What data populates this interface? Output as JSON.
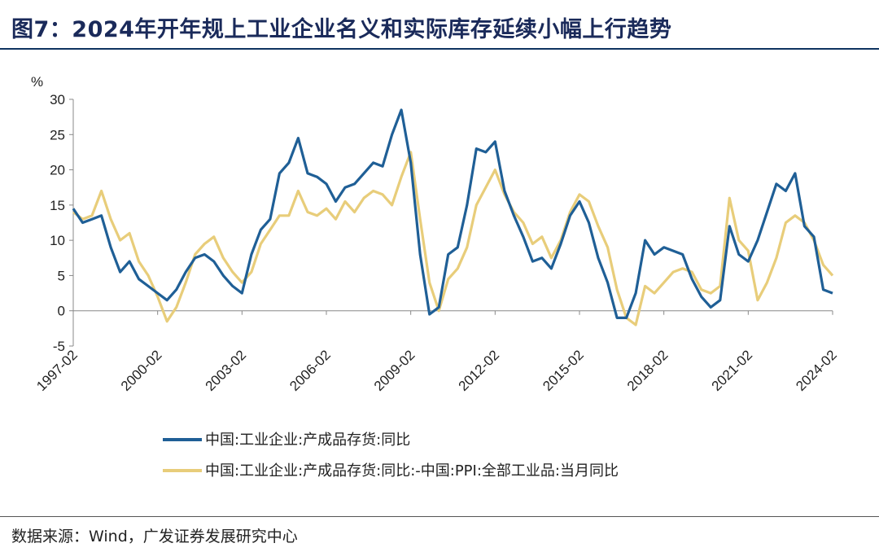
{
  "title": "图7：2024年开年规上工业企业名义和实际库存延续小幅上行趋势",
  "source": "数据来源：Wind，广发证券发展研究中心",
  "colors": {
    "series1": "#1f5f96",
    "series2": "#e8cd7a",
    "title": "#1a2a5a"
  },
  "chart_data": {
    "type": "line",
    "unit": "%",
    "ylim": [
      -5,
      30
    ],
    "yticks": [
      -5,
      0,
      5,
      10,
      15,
      20,
      25,
      30
    ],
    "xticks": [
      "1997-02",
      "2000-02",
      "2003-02",
      "2006-02",
      "2009-02",
      "2012-02",
      "2015-02",
      "2018-02",
      "2021-02",
      "2024-02"
    ],
    "x_range": [
      "1997-02",
      "2024-02"
    ],
    "grid": false,
    "legend": "bottom",
    "series": [
      {
        "name": "中国:工业企业:产成品存货:同比",
        "color": "#1f5f96",
        "points": [
          [
            "1997-02",
            14.5
          ],
          [
            "1997-06",
            12.5
          ],
          [
            "1997-10",
            13.0
          ],
          [
            "1998-02",
            13.5
          ],
          [
            "1998-06",
            9.0
          ],
          [
            "1998-10",
            5.5
          ],
          [
            "1999-02",
            7.0
          ],
          [
            "1999-06",
            4.5
          ],
          [
            "1999-10",
            3.5
          ],
          [
            "2000-02",
            2.5
          ],
          [
            "2000-06",
            1.5
          ],
          [
            "2000-10",
            3.0
          ],
          [
            "2001-02",
            5.5
          ],
          [
            "2001-06",
            7.5
          ],
          [
            "2001-10",
            8.0
          ],
          [
            "2002-02",
            7.0
          ],
          [
            "2002-06",
            5.0
          ],
          [
            "2002-10",
            3.5
          ],
          [
            "2003-02",
            2.5
          ],
          [
            "2003-06",
            8.0
          ],
          [
            "2003-10",
            11.5
          ],
          [
            "2004-02",
            13.0
          ],
          [
            "2004-06",
            19.5
          ],
          [
            "2004-10",
            21.0
          ],
          [
            "2005-02",
            24.5
          ],
          [
            "2005-06",
            19.5
          ],
          [
            "2005-10",
            19.0
          ],
          [
            "2006-02",
            18.0
          ],
          [
            "2006-06",
            15.5
          ],
          [
            "2006-10",
            17.5
          ],
          [
            "2007-02",
            18.0
          ],
          [
            "2007-06",
            19.5
          ],
          [
            "2007-10",
            21.0
          ],
          [
            "2008-02",
            20.5
          ],
          [
            "2008-06",
            25.0
          ],
          [
            "2008-10",
            28.5
          ],
          [
            "2009-02",
            21.0
          ],
          [
            "2009-06",
            8.0
          ],
          [
            "2009-10",
            -0.5
          ],
          [
            "2010-02",
            0.5
          ],
          [
            "2010-06",
            8.0
          ],
          [
            "2010-10",
            9.0
          ],
          [
            "2011-02",
            15.0
          ],
          [
            "2011-06",
            23.0
          ],
          [
            "2011-10",
            22.5
          ],
          [
            "2012-02",
            24.0
          ],
          [
            "2012-06",
            17.0
          ],
          [
            "2012-10",
            13.5
          ],
          [
            "2013-02",
            10.5
          ],
          [
            "2013-06",
            7.0
          ],
          [
            "2013-10",
            7.5
          ],
          [
            "2014-02",
            6.0
          ],
          [
            "2014-06",
            9.5
          ],
          [
            "2014-10",
            13.5
          ],
          [
            "2015-02",
            15.5
          ],
          [
            "2015-06",
            12.5
          ],
          [
            "2015-10",
            7.5
          ],
          [
            "2016-02",
            4.0
          ],
          [
            "2016-06",
            -1.0
          ],
          [
            "2016-10",
            -1.0
          ],
          [
            "2017-02",
            2.5
          ],
          [
            "2017-06",
            10.0
          ],
          [
            "2017-10",
            8.0
          ],
          [
            "2018-02",
            9.0
          ],
          [
            "2018-06",
            8.5
          ],
          [
            "2018-10",
            8.0
          ],
          [
            "2019-02",
            4.5
          ],
          [
            "2019-06",
            2.0
          ],
          [
            "2019-10",
            0.5
          ],
          [
            "2020-02",
            1.5
          ],
          [
            "2020-06",
            12.0
          ],
          [
            "2020-10",
            8.0
          ],
          [
            "2021-02",
            7.0
          ],
          [
            "2021-06",
            10.0
          ],
          [
            "2021-10",
            14.0
          ],
          [
            "2022-02",
            18.0
          ],
          [
            "2022-06",
            17.0
          ],
          [
            "2022-10",
            19.5
          ],
          [
            "2023-02",
            12.0
          ],
          [
            "2023-06",
            10.5
          ],
          [
            "2023-10",
            3.0
          ],
          [
            "2024-02",
            2.5
          ]
        ]
      },
      {
        "name": "中国:工业企业:产成品存货:同比:-中国:PPI:全部工业品:当月同比",
        "color": "#e8cd7a",
        "points": [
          [
            "1997-02",
            14.0
          ],
          [
            "1997-06",
            13.0
          ],
          [
            "1997-10",
            13.5
          ],
          [
            "1998-02",
            17.0
          ],
          [
            "1998-06",
            13.0
          ],
          [
            "1998-10",
            10.0
          ],
          [
            "1999-02",
            11.0
          ],
          [
            "1999-06",
            7.0
          ],
          [
            "1999-10",
            5.0
          ],
          [
            "2000-02",
            2.0
          ],
          [
            "2000-06",
            -1.5
          ],
          [
            "2000-10",
            0.5
          ],
          [
            "2001-02",
            4.0
          ],
          [
            "2001-06",
            8.0
          ],
          [
            "2001-10",
            9.5
          ],
          [
            "2002-02",
            10.5
          ],
          [
            "2002-06",
            7.5
          ],
          [
            "2002-10",
            5.5
          ],
          [
            "2003-02",
            4.0
          ],
          [
            "2003-06",
            5.5
          ],
          [
            "2003-10",
            9.5
          ],
          [
            "2004-02",
            11.5
          ],
          [
            "2004-06",
            13.5
          ],
          [
            "2004-10",
            13.5
          ],
          [
            "2005-02",
            17.0
          ],
          [
            "2005-06",
            14.0
          ],
          [
            "2005-10",
            13.5
          ],
          [
            "2006-02",
            14.5
          ],
          [
            "2006-06",
            13.0
          ],
          [
            "2006-10",
            15.5
          ],
          [
            "2007-02",
            14.0
          ],
          [
            "2007-06",
            16.0
          ],
          [
            "2007-10",
            17.0
          ],
          [
            "2008-02",
            16.5
          ],
          [
            "2008-06",
            15.0
          ],
          [
            "2008-10",
            19.0
          ],
          [
            "2009-02",
            22.5
          ],
          [
            "2009-06",
            13.0
          ],
          [
            "2009-10",
            4.0
          ],
          [
            "2010-02",
            0.0
          ],
          [
            "2010-06",
            4.5
          ],
          [
            "2010-10",
            6.0
          ],
          [
            "2011-02",
            9.0
          ],
          [
            "2011-06",
            15.0
          ],
          [
            "2011-10",
            17.5
          ],
          [
            "2012-02",
            20.0
          ],
          [
            "2012-06",
            16.5
          ],
          [
            "2012-10",
            14.0
          ],
          [
            "2013-02",
            12.5
          ],
          [
            "2013-06",
            9.5
          ],
          [
            "2013-10",
            10.5
          ],
          [
            "2014-02",
            7.5
          ],
          [
            "2014-06",
            10.0
          ],
          [
            "2014-10",
            14.0
          ],
          [
            "2015-02",
            16.5
          ],
          [
            "2015-06",
            15.5
          ],
          [
            "2015-10",
            12.0
          ],
          [
            "2016-02",
            9.0
          ],
          [
            "2016-06",
            3.0
          ],
          [
            "2016-10",
            -1.0
          ],
          [
            "2017-02",
            -2.0
          ],
          [
            "2017-06",
            3.5
          ],
          [
            "2017-10",
            2.5
          ],
          [
            "2018-02",
            4.0
          ],
          [
            "2018-06",
            5.5
          ],
          [
            "2018-10",
            6.0
          ],
          [
            "2019-02",
            5.5
          ],
          [
            "2019-06",
            3.0
          ],
          [
            "2019-10",
            2.5
          ],
          [
            "2020-02",
            3.5
          ],
          [
            "2020-06",
            16.0
          ],
          [
            "2020-10",
            10.0
          ],
          [
            "2021-02",
            8.5
          ],
          [
            "2021-06",
            1.5
          ],
          [
            "2021-10",
            4.0
          ],
          [
            "2022-02",
            7.5
          ],
          [
            "2022-06",
            12.5
          ],
          [
            "2022-10",
            13.5
          ],
          [
            "2023-02",
            12.5
          ],
          [
            "2023-06",
            10.0
          ],
          [
            "2023-10",
            6.5
          ],
          [
            "2024-02",
            5.0
          ]
        ]
      }
    ]
  }
}
